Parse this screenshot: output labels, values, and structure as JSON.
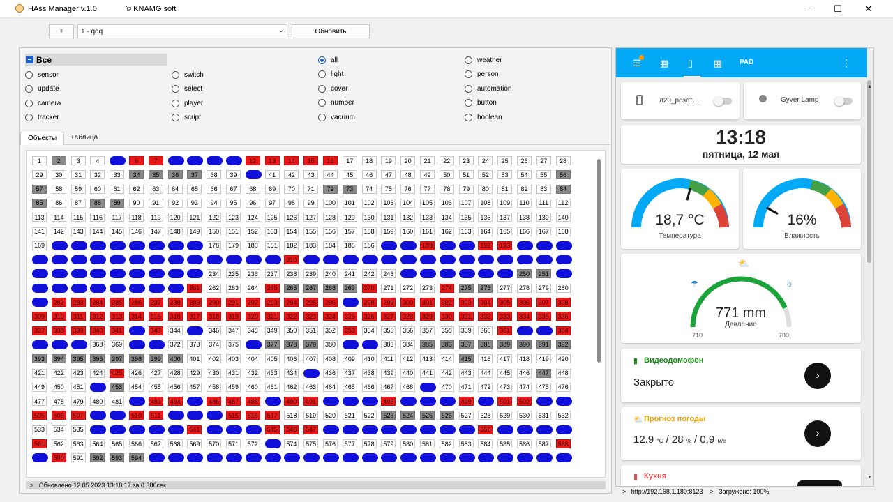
{
  "window": {
    "title": "HAss Manager  v.1.0",
    "copyright": "© KNAMG soft",
    "minimize": "—",
    "maximize": "☐",
    "close": "✕"
  },
  "toolbar": {
    "add_label": "+",
    "profile_value": "1 - qqq",
    "refresh_label": "Обновить"
  },
  "filter": {
    "all_label": "Все",
    "domains": [
      [
        "sensor",
        "update",
        "camera",
        "tracker"
      ],
      [
        "switch",
        "select",
        "player",
        "script"
      ]
    ],
    "groups": [
      [
        "all",
        "light",
        "cover",
        "number",
        "vacuum"
      ],
      [
        "weather",
        "person",
        "automation",
        "button",
        "boolean"
      ]
    ],
    "selected": "all"
  },
  "tabs": [
    {
      "label": "Объекты"
    },
    {
      "label": "Таблица"
    }
  ],
  "grid": {
    "total": 616,
    "columns": 28,
    "red": [
      6,
      7,
      12,
      13,
      14,
      15,
      16,
      189,
      192,
      193,
      210,
      261,
      265,
      270,
      274,
      282,
      283,
      284,
      285,
      286,
      287,
      288,
      289,
      290,
      291,
      292,
      293,
      294,
      295,
      296,
      298,
      299,
      300,
      301,
      302,
      303,
      304,
      305,
      306,
      307,
      308,
      309,
      310,
      311,
      312,
      313,
      314,
      315,
      316,
      317,
      318,
      319,
      320,
      321,
      322,
      323,
      324,
      325,
      326,
      327,
      328,
      329,
      330,
      331,
      332,
      333,
      334,
      335,
      336,
      337,
      338,
      339,
      340,
      341,
      343,
      353,
      361,
      364,
      425,
      483,
      484,
      486,
      487,
      488,
      490,
      491,
      495,
      499,
      501,
      502,
      505,
      506,
      507,
      510,
      511,
      515,
      516,
      517,
      541,
      545,
      546,
      547,
      556,
      561,
      588,
      590
    ],
    "blue": [
      5,
      8,
      9,
      10,
      11,
      40,
      170,
      171,
      172,
      173,
      174,
      175,
      176,
      177,
      187,
      188,
      190,
      191,
      194,
      195,
      196,
      197,
      198,
      199,
      200,
      201,
      202,
      203,
      204,
      205,
      206,
      207,
      208,
      209,
      211,
      212,
      213,
      214,
      215,
      216,
      217,
      218,
      219,
      220,
      221,
      222,
      223,
      224,
      225,
      226,
      227,
      228,
      229,
      230,
      231,
      232,
      233,
      244,
      245,
      246,
      247,
      248,
      249,
      252,
      253,
      254,
      255,
      256,
      257,
      258,
      259,
      260,
      281,
      297,
      342,
      345,
      362,
      363,
      365,
      366,
      367,
      370,
      371,
      376,
      381,
      382,
      435,
      452,
      469,
      482,
      485,
      489,
      492,
      493,
      494,
      496,
      497,
      498,
      500,
      503,
      504,
      508,
      509,
      512,
      513,
      514,
      536,
      537,
      538,
      539,
      540,
      542,
      543,
      544,
      548,
      549,
      550,
      551,
      552,
      553,
      554,
      555,
      557,
      558,
      559,
      560,
      573,
      589,
      595,
      596,
      597,
      598,
      599,
      600,
      601,
      602,
      603,
      604,
      605,
      606,
      607,
      608,
      609,
      610,
      611,
      612,
      613,
      614,
      615,
      616
    ],
    "gray": [
      2,
      34,
      35,
      36,
      37,
      56,
      57,
      72,
      73,
      84,
      85,
      88,
      89,
      250,
      251,
      266,
      267,
      268,
      269,
      275,
      276,
      377,
      378,
      379,
      385,
      386,
      387,
      388,
      389,
      390,
      391,
      392,
      393,
      394,
      395,
      396,
      397,
      398,
      399,
      400,
      415,
      447,
      453,
      523,
      524,
      525,
      526,
      592,
      593,
      594
    ]
  },
  "left_status": {
    "arrow": ">",
    "text": "Обновлено  12.05.2023  13:18:17  за  0.386сек"
  },
  "ha": {
    "pad_label": "PAD",
    "tiles": [
      {
        "name": "л20_розет…"
      },
      {
        "name": "Gyver Lamp"
      }
    ],
    "clock": {
      "time": "13:18",
      "date": "пятница, 12 мая"
    },
    "gauges": [
      {
        "value": "18,7 °C",
        "label": "Температура",
        "level": 0.58
      },
      {
        "value": "16%",
        "label": "Влажность",
        "level": 0.16
      }
    ],
    "pressure": {
      "value": "771 mm",
      "label": "Давление",
      "min": "710",
      "max": "780",
      "level": 0.87
    },
    "intercom": {
      "title": "Видеодомофон",
      "state": "Закрыто"
    },
    "forecast": {
      "title": "Прогноз погоды",
      "temp": "12.9",
      "temp_unit": "°C",
      "sep": "/",
      "hum": "28",
      "hum_unit": "%",
      "wind": "0.9",
      "wind_unit": "м/с"
    },
    "kitchen": {
      "title": "Кухня"
    },
    "colors": {
      "accent": "#03a9f4",
      "green": "#43a047",
      "orange": "#ff9800",
      "red": "#db4437"
    }
  },
  "right_status": {
    "url": "http://192.168.1.180:8123",
    "loaded": "Загружено: 100%",
    "arrow": ">"
  }
}
